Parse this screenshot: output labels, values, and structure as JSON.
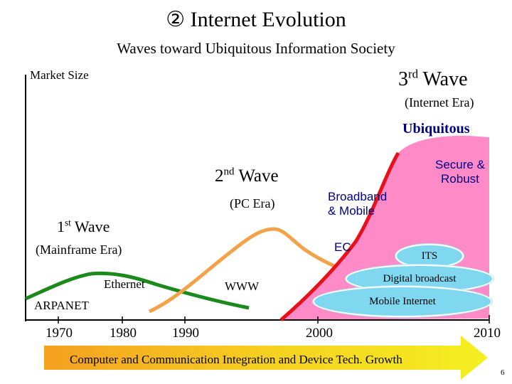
{
  "title": "② Internet Evolution",
  "subtitle": "Waves toward Ubiquitous Information Society",
  "axis": {
    "y_label": "Market Size"
  },
  "waves": {
    "third": {
      "label": "3",
      "suffix": "rd",
      "word": "Wave",
      "era": "(Internet Era)"
    },
    "second": {
      "label": "2",
      "suffix": "nd",
      "word": "Wave",
      "era": "(PC Era)"
    },
    "first": {
      "label": "1",
      "suffix": "st",
      "word": "Wave",
      "era": "(Mainframe Era)"
    }
  },
  "labels": {
    "ubiquitous": "Ubiquitous",
    "secure_line1": "Secure &",
    "secure_line2": "Robust",
    "broadband_line1": "Broadband",
    "broadband_line2": "& Mobile",
    "ec": "EC",
    "ethernet": "Ethernet",
    "www": "WWW",
    "arpanet": "ARPANET"
  },
  "bubbles": {
    "its": "ITS",
    "digital_broadcast": "Digital broadcast",
    "mobile_internet": "Mobile Internet"
  },
  "years": [
    "1970",
    "1980",
    "1990",
    "2000",
    "2010"
  ],
  "arrow_text": "Computer and Communication Integration and Device Tech. Growth",
  "page_number": "6",
  "colors": {
    "wave1": "#1a8a1a",
    "wave2": "#f4a24a",
    "wave3": "#e8101a",
    "wave3_fill": "#ff8ac8",
    "bubble": "#7fd8f0",
    "arrow": "#f0e020",
    "accent_text": "#000080"
  }
}
